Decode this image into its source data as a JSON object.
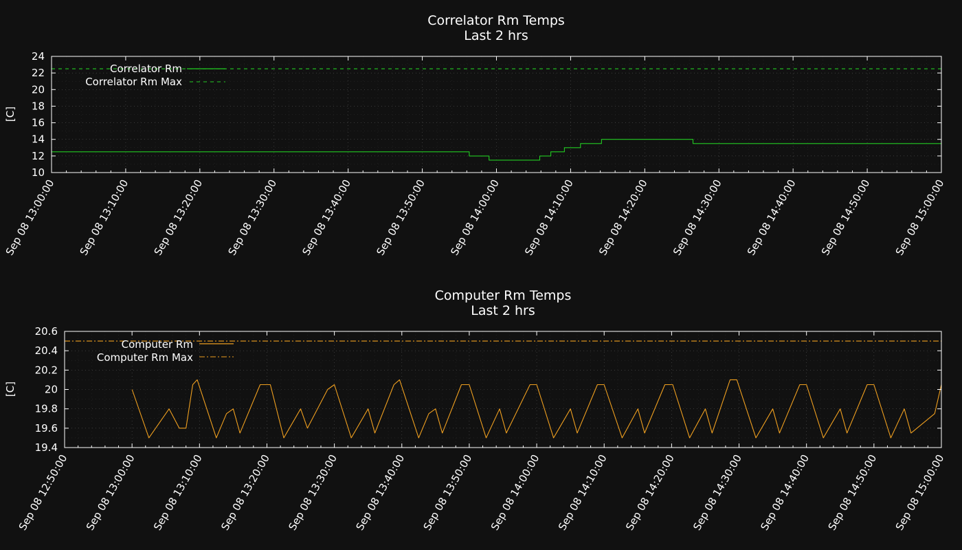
{
  "charts": [
    {
      "title": "Correlator Rm Temps",
      "subtitle": "Last 2 hrs",
      "ylabel": "[C]",
      "yticks": [
        "10",
        "12",
        "14",
        "16",
        "18",
        "20",
        "22",
        "24"
      ],
      "xticks": [
        "Sep 08 13:00:00",
        "Sep 08 13:10:00",
        "Sep 08 13:20:00",
        "Sep 08 13:30:00",
        "Sep 08 13:40:00",
        "Sep 08 13:50:00",
        "Sep 08 14:00:00",
        "Sep 08 14:10:00",
        "Sep 08 14:20:00",
        "Sep 08 14:30:00",
        "Sep 08 14:40:00",
        "Sep 08 14:50:00",
        "Sep 08 15:00:00"
      ],
      "legend": [
        "Correlator Rm",
        "Correlator Rm Max"
      ]
    },
    {
      "title": "Computer Rm Temps",
      "subtitle": "Last 2 hrs",
      "ylabel": "[C]",
      "yticks": [
        "19.4",
        "19.6",
        "19.8",
        "20",
        "20.2",
        "20.4",
        "20.6"
      ],
      "xticks": [
        "Sep 08 12:50:00",
        "Sep 08 13:00:00",
        "Sep 08 13:10:00",
        "Sep 08 13:20:00",
        "Sep 08 13:30:00",
        "Sep 08 13:40:00",
        "Sep 08 13:50:00",
        "Sep 08 14:00:00",
        "Sep 08 14:10:00",
        "Sep 08 14:20:00",
        "Sep 08 14:30:00",
        "Sep 08 14:40:00",
        "Sep 08 14:50:00",
        "Sep 08 15:00:00"
      ],
      "legend": [
        "Computer Rm",
        "Computer Rm Max"
      ]
    }
  ],
  "colors": {
    "background": "#111111",
    "correlator": "#22cc22",
    "computer": "#f0a020",
    "grid": "#555555",
    "axis": "#ffffff"
  },
  "chart_data": [
    {
      "type": "line",
      "title": "Correlator Rm Temps",
      "subtitle": "Last 2 hrs",
      "ylabel": "[C]",
      "xlim": [
        "Sep 08 13:00:00",
        "Sep 08 15:00:00"
      ],
      "ylim": [
        10,
        24
      ],
      "grid": true,
      "legend_position": "top-left",
      "series": [
        {
          "name": "Correlator Rm",
          "color": "#22cc22",
          "x": [
            "Sep 08 13:00:00",
            "Sep 08 13:56:20",
            "Sep 08 13:56:20",
            "Sep 08 13:59:00",
            "Sep 08 13:59:00",
            "Sep 08 14:05:50",
            "Sep 08 14:05:50",
            "Sep 08 14:07:20",
            "Sep 08 14:07:20",
            "Sep 08 14:09:10",
            "Sep 08 14:09:10",
            "Sep 08 14:11:20",
            "Sep 08 14:11:20",
            "Sep 08 14:14:10",
            "Sep 08 14:14:10",
            "Sep 08 14:26:30",
            "Sep 08 14:26:30",
            "Sep 08 15:00:00"
          ],
          "y": [
            12.5,
            12.5,
            12.0,
            12.0,
            11.5,
            11.5,
            12.0,
            12.0,
            12.5,
            12.5,
            13.0,
            13.0,
            13.5,
            13.5,
            14.0,
            14.0,
            13.5,
            13.5
          ]
        },
        {
          "name": "Correlator Rm Max",
          "color": "#22cc22",
          "style": "dashed",
          "x": [
            "Sep 08 13:00:00",
            "Sep 08 15:00:00"
          ],
          "y": [
            22.5,
            22.5
          ]
        }
      ]
    },
    {
      "type": "line",
      "title": "Computer Rm Temps",
      "subtitle": "Last 2 hrs",
      "ylabel": "[C]",
      "xlim": [
        "Sep 08 12:50:00",
        "Sep 08 15:00:00"
      ],
      "ylim": [
        19.4,
        20.6
      ],
      "grid": true,
      "legend_position": "top-left",
      "series": [
        {
          "name": "Computer Rm",
          "color": "#f0a020",
          "x": [
            "Sep 08 13:00:00",
            "Sep 08 13:02:30",
            "Sep 08 13:05:30",
            "Sep 08 13:07:00",
            "Sep 08 13:08:00",
            "Sep 08 13:09:00",
            "Sep 08 13:09:40",
            "Sep 08 13:12:30",
            "Sep 08 13:14:00",
            "Sep 08 13:15:00",
            "Sep 08 13:16:00",
            "Sep 08 13:19:00",
            "Sep 08 13:20:30",
            "Sep 08 13:22:30",
            "Sep 08 13:25:00",
            "Sep 08 13:26:00",
            "Sep 08 13:29:00",
            "Sep 08 13:30:00",
            "Sep 08 13:32:30",
            "Sep 08 13:35:00",
            "Sep 08 13:36:00",
            "Sep 08 13:38:50",
            "Sep 08 13:39:40",
            "Sep 08 13:42:30",
            "Sep 08 13:44:00",
            "Sep 08 13:45:00",
            "Sep 08 13:46:00",
            "Sep 08 13:48:50",
            "Sep 08 13:50:00",
            "Sep 08 13:52:30",
            "Sep 08 13:54:30",
            "Sep 08 13:55:30",
            "Sep 08 13:59:00",
            "Sep 08 14:00:00",
            "Sep 08 14:02:30",
            "Sep 08 14:05:00",
            "Sep 08 14:06:00",
            "Sep 08 14:09:00",
            "Sep 08 14:10:00",
            "Sep 08 14:12:40",
            "Sep 08 14:15:00",
            "Sep 08 14:16:00",
            "Sep 08 14:19:00",
            "Sep 08 14:20:10",
            "Sep 08 14:22:40",
            "Sep 08 14:25:00",
            "Sep 08 14:26:00",
            "Sep 08 14:28:40",
            "Sep 08 14:29:40",
            "Sep 08 14:32:30",
            "Sep 08 14:35:00",
            "Sep 08 14:36:00",
            "Sep 08 14:39:00",
            "Sep 08 14:40:00",
            "Sep 08 14:42:30",
            "Sep 08 14:45:00",
            "Sep 08 14:46:00",
            "Sep 08 14:49:00",
            "Sep 08 14:50:00",
            "Sep 08 14:52:30",
            "Sep 08 14:54:30",
            "Sep 08 14:55:30",
            "Sep 08 14:59:00",
            "Sep 08 15:00:00"
          ],
          "y": [
            20.0,
            19.5,
            19.8,
            19.6,
            19.6,
            20.05,
            20.1,
            19.5,
            19.75,
            19.8,
            19.55,
            20.05,
            20.05,
            19.5,
            19.8,
            19.6,
            20.0,
            20.05,
            19.5,
            19.8,
            19.55,
            20.05,
            20.1,
            19.5,
            19.75,
            19.8,
            19.55,
            20.05,
            20.05,
            19.5,
            19.8,
            19.55,
            20.05,
            20.05,
            19.5,
            19.8,
            19.55,
            20.05,
            20.05,
            19.5,
            19.8,
            19.55,
            20.05,
            20.05,
            19.5,
            19.8,
            19.55,
            20.1,
            20.1,
            19.5,
            19.8,
            19.55,
            20.05,
            20.05,
            19.5,
            19.8,
            19.55,
            20.05,
            20.05,
            19.5,
            19.8,
            19.55,
            19.75,
            20.05
          ]
        },
        {
          "name": "Computer Rm Max",
          "color": "#f0a020",
          "style": "dash-dot",
          "x": [
            "Sep 08 12:50:00",
            "Sep 08 15:00:00"
          ],
          "y": [
            20.5,
            20.5
          ]
        }
      ]
    }
  ]
}
